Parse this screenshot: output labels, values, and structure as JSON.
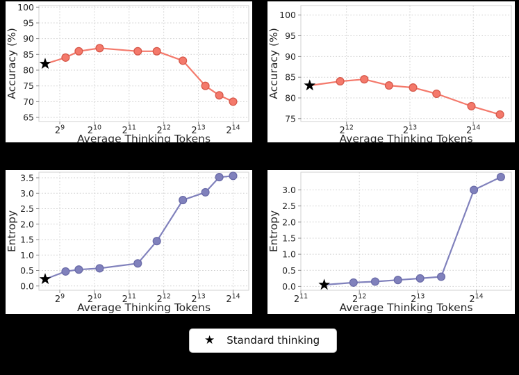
{
  "figure": {
    "background_color": "#000000",
    "legend": {
      "star_glyph": "★",
      "label": "Standard thinking"
    }
  },
  "chart_data": [
    {
      "id": "accuracy-chart-left",
      "type": "line",
      "position": "top-left",
      "xlabel": "Average Thinking Tokens",
      "ylabel": "Accuracy (%)",
      "x_scale": "log2",
      "x_tick_exponents": [
        9,
        10,
        11,
        12,
        13,
        14
      ],
      "xlim_log2": [
        8.4,
        14.45
      ],
      "y_tick_labels": [
        "65",
        "70",
        "75",
        "80",
        "85",
        "90",
        "95",
        "100"
      ],
      "ylim": [
        63.7,
        100.5
      ],
      "grid": true,
      "line_color": "#f4796b",
      "marker_edge_color": "#d6584a",
      "star_color": "#000000",
      "star_point_log2x_y": [
        8.58,
        82
      ],
      "points_log2x_y": [
        [
          9.17,
          84
        ],
        [
          9.55,
          86
        ],
        [
          10.15,
          87
        ],
        [
          11.25,
          86
        ],
        [
          11.8,
          86
        ],
        [
          12.55,
          83
        ],
        [
          13.2,
          75
        ],
        [
          13.6,
          72
        ],
        [
          14.0,
          70
        ]
      ]
    },
    {
      "id": "accuracy-chart-right",
      "type": "line",
      "position": "top-right",
      "xlabel": "Average Thinking Tokens",
      "ylabel": "Accuracy (%)",
      "x_scale": "log2",
      "x_tick_exponents": [
        12,
        13,
        14
      ],
      "xlim_log2": [
        11.28,
        14.6
      ],
      "y_tick_labels": [
        "75",
        "80",
        "85",
        "90",
        "95",
        "100"
      ],
      "ylim": [
        74.3,
        102.3
      ],
      "grid": true,
      "line_color": "#f4796b",
      "marker_edge_color": "#d6584a",
      "star_color": "#000000",
      "star_point_log2x_y": [
        11.42,
        83
      ],
      "points_log2x_y": [
        [
          11.9,
          84
        ],
        [
          12.28,
          84.5
        ],
        [
          12.67,
          83
        ],
        [
          13.05,
          82.5
        ],
        [
          13.42,
          81
        ],
        [
          13.97,
          78
        ],
        [
          14.42,
          76
        ]
      ]
    },
    {
      "id": "entropy-chart-left",
      "type": "line",
      "position": "bottom-left",
      "xlabel": "Average Thinking Tokens",
      "ylabel": "Entropy",
      "x_scale": "log2",
      "x_tick_exponents": [
        9,
        10,
        11,
        12,
        13,
        14
      ],
      "xlim_log2": [
        8.4,
        14.45
      ],
      "y_tick_labels": [
        "0.0",
        "0.5",
        "1.0",
        "1.5",
        "2.0",
        "2.5",
        "3.0",
        "3.5"
      ],
      "ylim": [
        -0.14,
        3.68
      ],
      "grid": true,
      "line_color": "#8081bc",
      "marker_edge_color": "#6a6ba8",
      "star_color": "#000000",
      "star_point_log2x_y": [
        8.58,
        0.22
      ],
      "points_log2x_y": [
        [
          9.17,
          0.47
        ],
        [
          9.55,
          0.53
        ],
        [
          10.15,
          0.57
        ],
        [
          11.25,
          0.73
        ],
        [
          11.8,
          1.45
        ],
        [
          12.55,
          2.78
        ],
        [
          13.2,
          3.03
        ],
        [
          13.6,
          3.52
        ],
        [
          14.0,
          3.56
        ]
      ]
    },
    {
      "id": "entropy-chart-right",
      "type": "line",
      "position": "bottom-right",
      "xlabel": "Average Thinking Tokens",
      "ylabel": "Entropy",
      "x_scale": "log2",
      "x_tick_exponents": [
        11,
        12,
        13,
        14
      ],
      "xlim_log2": [
        11.0,
        14.6
      ],
      "y_tick_labels": [
        "0.0",
        "0.5",
        "1.0",
        "1.5",
        "2.0",
        "2.5",
        "3.0"
      ],
      "ylim": [
        -0.12,
        3.55
      ],
      "grid": true,
      "line_color": "#8081bc",
      "marker_edge_color": "#6a6ba8",
      "star_color": "#000000",
      "star_point_log2x_y": [
        11.4,
        0.05
      ],
      "points_log2x_y": [
        [
          11.9,
          0.12
        ],
        [
          12.27,
          0.15
        ],
        [
          12.66,
          0.2
        ],
        [
          13.04,
          0.25
        ],
        [
          13.4,
          0.3
        ],
        [
          13.96,
          3.0
        ],
        [
          14.42,
          3.4
        ]
      ]
    }
  ]
}
